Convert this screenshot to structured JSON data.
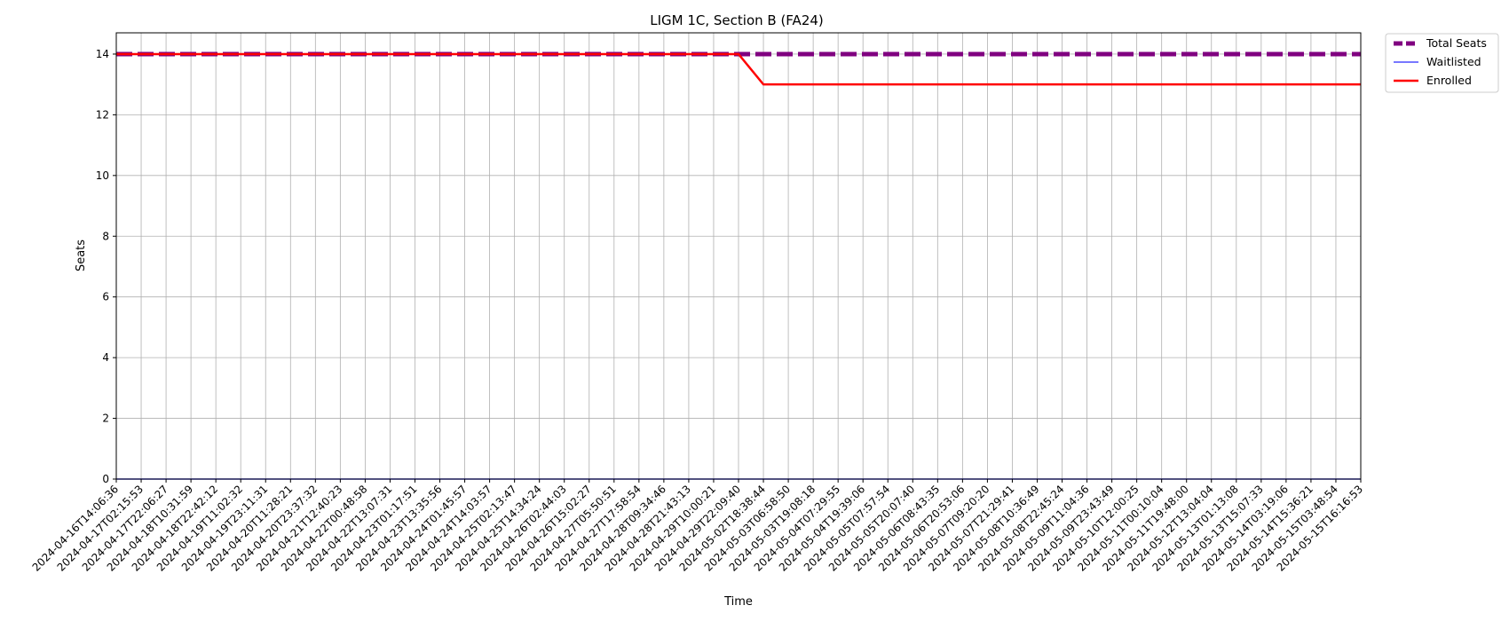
{
  "chart_data": {
    "type": "line",
    "title": "LIGM 1C, Section B (FA24)",
    "xlabel": "Time",
    "ylabel": "Seats",
    "ylim": [
      0,
      14.7
    ],
    "yticks": [
      0,
      2,
      4,
      6,
      8,
      10,
      12,
      14
    ],
    "grid": true,
    "legend_position": "outside-top-right",
    "categories": [
      "2024-04-16T14:06:36",
      "2024-04-17T02:15:53",
      "2024-04-17T22:06:27",
      "2024-04-18T10:31:59",
      "2024-04-18T22:42:12",
      "2024-04-19T11:02:32",
      "2024-04-19T23:11:31",
      "2024-04-20T11:28:21",
      "2024-04-20T23:37:32",
      "2024-04-21T12:40:23",
      "2024-04-22T00:48:58",
      "2024-04-22T13:07:31",
      "2024-04-23T01:17:51",
      "2024-04-23T13:35:56",
      "2024-04-24T01:45:57",
      "2024-04-24T14:03:57",
      "2024-04-25T02:13:47",
      "2024-04-25T14:34:24",
      "2024-04-26T02:44:03",
      "2024-04-26T15:02:27",
      "2024-04-27T05:50:51",
      "2024-04-27T17:58:54",
      "2024-04-28T09:34:46",
      "2024-04-28T21:43:13",
      "2024-04-29T10:00:21",
      "2024-04-29T22:09:40",
      "2024-05-02T18:38:44",
      "2024-05-03T06:58:50",
      "2024-05-03T19:08:18",
      "2024-05-04T07:29:55",
      "2024-05-04T19:39:06",
      "2024-05-05T07:57:54",
      "2024-05-05T20:07:40",
      "2024-05-06T08:43:35",
      "2024-05-06T20:53:06",
      "2024-05-07T09:20:20",
      "2024-05-07T21:29:41",
      "2024-05-08T10:36:49",
      "2024-05-08T22:45:24",
      "2024-05-09T11:04:36",
      "2024-05-09T23:43:49",
      "2024-05-10T12:00:25",
      "2024-05-11T00:10:04",
      "2024-05-11T19:48:00",
      "2024-05-12T13:04:04",
      "2024-05-13T01:13:08",
      "2024-05-13T15:07:33",
      "2024-05-14T03:19:06",
      "2024-05-14T15:36:21",
      "2024-05-15T03:48:54",
      "2024-05-15T16:16:53"
    ],
    "series": [
      {
        "name": "Total Seats",
        "color": "#800080",
        "style": "dashed",
        "values": [
          14,
          14,
          14,
          14,
          14,
          14,
          14,
          14,
          14,
          14,
          14,
          14,
          14,
          14,
          14,
          14,
          14,
          14,
          14,
          14,
          14,
          14,
          14,
          14,
          14,
          14,
          14,
          14,
          14,
          14,
          14,
          14,
          14,
          14,
          14,
          14,
          14,
          14,
          14,
          14,
          14,
          14,
          14,
          14,
          14,
          14,
          14,
          14,
          14,
          14,
          14
        ]
      },
      {
        "name": "Waitlisted",
        "color": "#4b4bff",
        "style": "solid",
        "values": [
          0,
          0,
          0,
          0,
          0,
          0,
          0,
          0,
          0,
          0,
          0,
          0,
          0,
          0,
          0,
          0,
          0,
          0,
          0,
          0,
          0,
          0,
          0,
          0,
          0,
          0,
          0,
          0,
          0,
          0,
          0,
          0,
          0,
          0,
          0,
          0,
          0,
          0,
          0,
          0,
          0,
          0,
          0,
          0,
          0,
          0,
          0,
          0,
          0,
          0,
          0
        ]
      },
      {
        "name": "Enrolled",
        "color": "#ff0000",
        "style": "solid",
        "values": [
          14,
          14,
          14,
          14,
          14,
          14,
          14,
          14,
          14,
          14,
          14,
          14,
          14,
          14,
          14,
          14,
          14,
          14,
          14,
          14,
          14,
          14,
          14,
          14,
          14,
          14,
          13,
          13,
          13,
          13,
          13,
          13,
          13,
          13,
          13,
          13,
          13,
          13,
          13,
          13,
          13,
          13,
          13,
          13,
          13,
          13,
          13,
          13,
          13,
          13,
          13
        ]
      }
    ]
  }
}
